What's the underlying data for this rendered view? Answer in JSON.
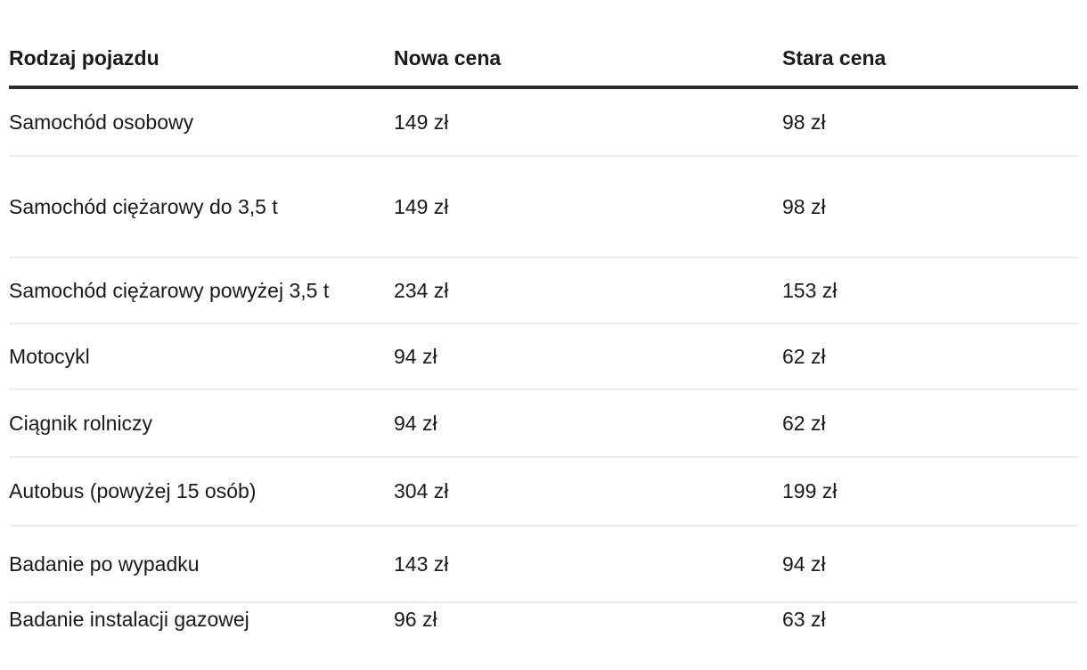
{
  "table": {
    "columns": [
      {
        "key": "vehicle",
        "label": "Rodzaj pojazdu"
      },
      {
        "key": "new_price",
        "label": "Nowa cena"
      },
      {
        "key": "old_price",
        "label": "Stara cena"
      }
    ],
    "rows": [
      {
        "vehicle": "Samochód osobowy",
        "new_price": "149 zł",
        "old_price": "98 zł"
      },
      {
        "vehicle": "Samochód ciężarowy do 3,5 t",
        "new_price": "149 zł",
        "old_price": "98 zł"
      },
      {
        "vehicle": "Samochód ciężarowy powyżej 3,5 t",
        "new_price": "234 zł",
        "old_price": "153 zł"
      },
      {
        "vehicle": "Motocykl",
        "new_price": "94 zł",
        "old_price": "62 zł"
      },
      {
        "vehicle": "Ciągnik rolniczy",
        "new_price": "94 zł",
        "old_price": "62 zł"
      },
      {
        "vehicle": "Autobus (powyżej 15 osób)",
        "new_price": "304 zł",
        "old_price": "199 zł"
      },
      {
        "vehicle": "Badanie po wypadku",
        "new_price": "143 zł",
        "old_price": "94 zł"
      },
      {
        "vehicle": "Badanie instalacji gazowej",
        "new_price": "96 zł",
        "old_price": "63 zł"
      }
    ],
    "colors": {
      "background": "#ffffff",
      "text": "#1a1a1a",
      "header_rule": "#2e2e2e",
      "row_separator": "#ececec"
    }
  }
}
